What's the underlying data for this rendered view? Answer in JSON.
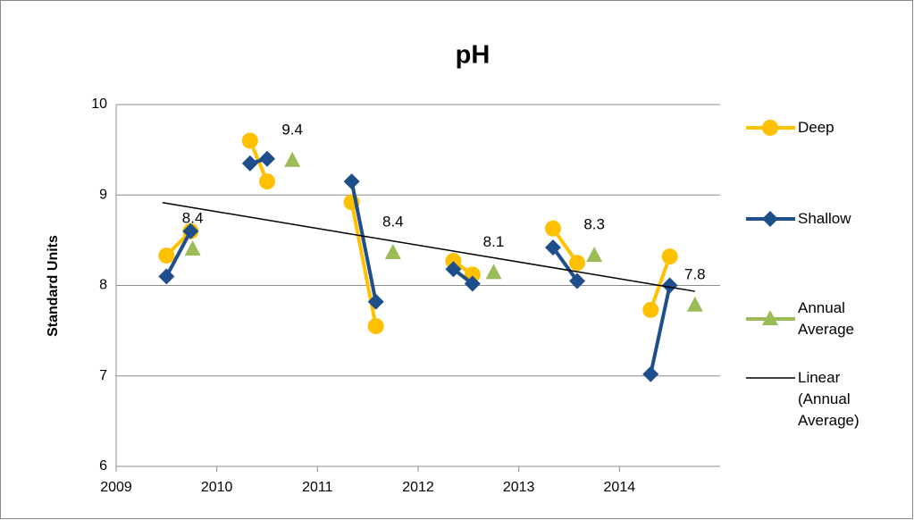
{
  "chart_data": {
    "type": "line",
    "title": "pH",
    "y_label": "Standard Units",
    "xlim": [
      2009,
      2015
    ],
    "xticks": [
      2009,
      2010,
      2011,
      2012,
      2013,
      2014
    ],
    "ylim": [
      6,
      10
    ],
    "yticks": [
      6,
      7,
      8,
      9,
      10
    ],
    "grid": true,
    "legend": "right",
    "series": [
      {
        "name": "Deep",
        "color": "#FFC000",
        "marker": "circle",
        "x": [
          2009.5,
          2009.74,
          null,
          2010.33,
          2010.5,
          null,
          2011.34,
          2011.58,
          null,
          2012.35,
          2012.54,
          null,
          2013.34,
          2013.58,
          null,
          2014.31,
          2014.5
        ],
        "values": [
          8.33,
          8.6,
          null,
          9.6,
          9.15,
          null,
          8.92,
          7.55,
          null,
          8.27,
          8.12,
          null,
          8.63,
          8.25,
          null,
          7.73,
          8.32
        ]
      },
      {
        "name": "Shallow",
        "color": "#1F4E8C",
        "marker": "diamond",
        "x": [
          2009.5,
          2009.74,
          null,
          2010.33,
          2010.5,
          null,
          2011.34,
          2011.58,
          null,
          2012.35,
          2012.54,
          null,
          2013.34,
          2013.58,
          null,
          2014.31,
          2014.5
        ],
        "values": [
          8.1,
          8.6,
          null,
          9.35,
          9.4,
          null,
          9.15,
          7.82,
          null,
          8.18,
          8.02,
          null,
          8.42,
          8.05,
          null,
          7.02,
          8.0
        ]
      },
      {
        "name": "Annual Average",
        "color": "#9BBB59",
        "marker": "triangle",
        "line": false,
        "x": [
          2009.76,
          2010.75,
          2011.75,
          2012.75,
          2013.75,
          2014.75
        ],
        "values": [
          8.4,
          9.38,
          8.36,
          8.14,
          8.33,
          7.78
        ],
        "value_labels": [
          "8.4",
          "9.4",
          "8.4",
          "8.1",
          "8.3",
          "7.8"
        ]
      }
    ],
    "trendline": {
      "name": "Linear (Annual Average)",
      "of_series": 2,
      "color": "#000000"
    }
  }
}
